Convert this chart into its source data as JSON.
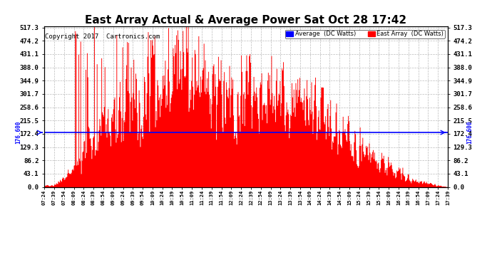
{
  "title": "East Array Actual & Average Power Sat Oct 28 17:42",
  "copyright": "Copyright 2017  Cartronics.com",
  "average_value": 176.6,
  "average_label_text": "176.600",
  "y_max": 517.3,
  "y_min": 0.0,
  "y_ticks": [
    0.0,
    43.1,
    86.2,
    129.3,
    172.4,
    215.5,
    258.6,
    301.7,
    344.9,
    388.0,
    431.1,
    474.2,
    517.3
  ],
  "avg_label": "Average  (DC Watts)",
  "east_label": "East Array  (DC Watts)",
  "avg_color": "#0000ff",
  "east_color": "#ff0000",
  "bg_color": "#ffffff",
  "grid_color": "#aaaaaa",
  "title_fontsize": 11,
  "copyright_fontsize": 6.5,
  "east_fill_color": "#ff0000",
  "x_start_min": 444,
  "x_end_min": 1059,
  "x_tick_interval_min": 15
}
